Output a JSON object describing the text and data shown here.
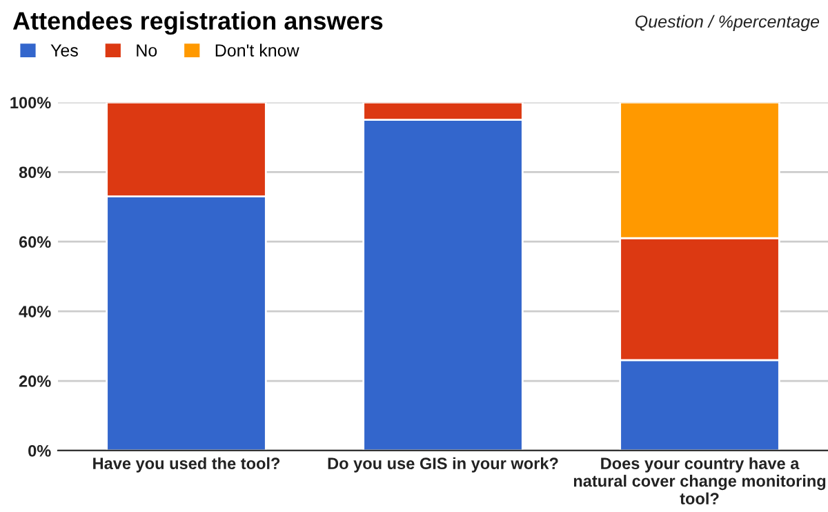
{
  "chart_data": {
    "type": "bar",
    "title": "Attendees registration answers",
    "subtitle": "Question / %percentage",
    "categories": [
      "Have you used the tool?",
      "Do you use GIS in your work?",
      "Does your country have a natural cover change monitoring tool?"
    ],
    "stacked": true,
    "series": [
      {
        "name": "Yes",
        "color": "#3366cc",
        "values": [
          73,
          95,
          26
        ]
      },
      {
        "name": "No",
        "color": "#dc3912",
        "values": [
          27,
          5,
          35
        ]
      },
      {
        "name": "Don't know",
        "color": "#ff9900",
        "values": [
          null,
          null,
          39
        ]
      }
    ],
    "ylim": [
      0,
      100
    ],
    "yticks": [
      {
        "value": 0,
        "label": "0%"
      },
      {
        "value": 20,
        "label": "20%"
      },
      {
        "value": 40,
        "label": "40%"
      },
      {
        "value": 60,
        "label": "60%"
      },
      {
        "value": 80,
        "label": "80%"
      },
      {
        "value": 100,
        "label": "100%"
      }
    ],
    "grid": "y",
    "legend": "top left"
  }
}
